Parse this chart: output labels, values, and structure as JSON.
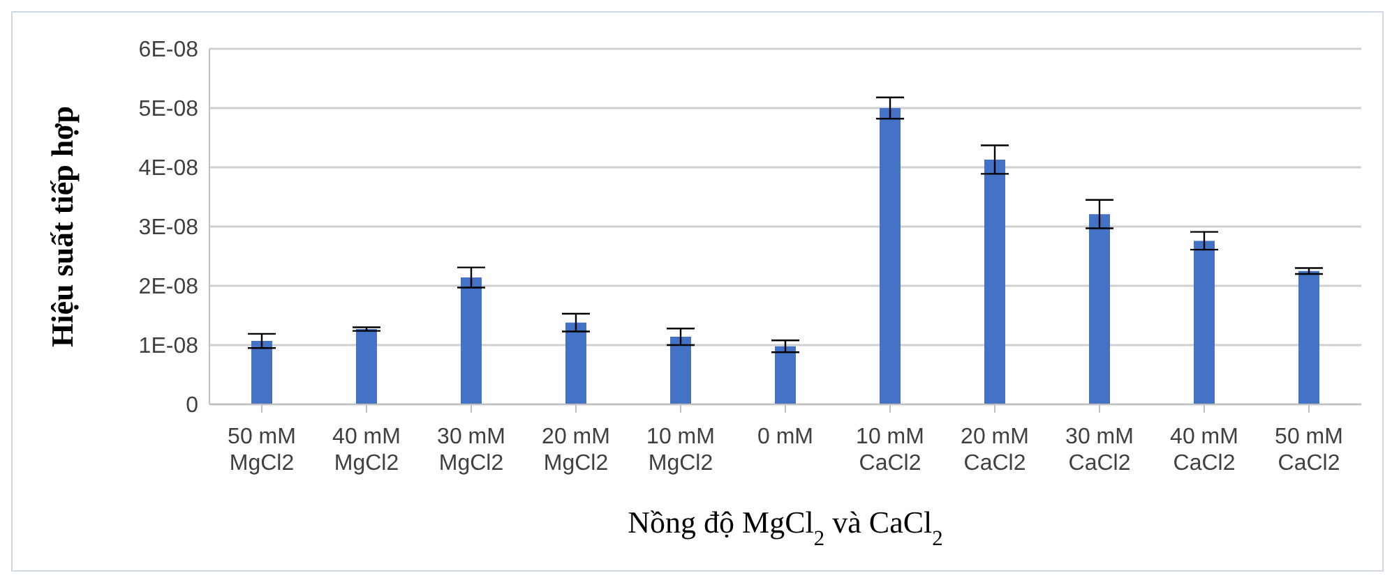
{
  "chart_data": {
    "type": "bar",
    "ylabel": "Hiệu suất tiếp hợp",
    "xlabel": "Nồng độ MgCl$_{2}$ và CaCl$_{2}$",
    "categories": [
      "50 mM\nMgCl2",
      "40 mM\nMgCl2",
      "30 mM\nMgCl2",
      "20 mM\nMgCl2",
      "10 mM\nMgCl2",
      "0 mM",
      "10 mM\nCaCl2",
      "20 mM\nCaCl2",
      "30 mM\nCaCl2",
      "40 mM\nCaCl2",
      "50 mM\nCaCl2"
    ],
    "values": [
      1.07e-08,
      1.27e-08,
      2.14e-08,
      1.38e-08,
      1.14e-08,
      9.8e-09,
      5e-08,
      4.13e-08,
      3.21e-08,
      2.76e-08,
      2.25e-08
    ],
    "errors": [
      1.2e-09,
      3e-10,
      1.7e-09,
      1.5e-09,
      1.4e-09,
      1e-09,
      1.8e-09,
      2.4e-09,
      2.4e-09,
      1.5e-09,
      5e-10
    ],
    "color": "#4472c4",
    "ylim": [
      0,
      6e-08
    ],
    "yticks": [
      0,
      {
        "value": 1e-08,
        "label": "1E-08"
      },
      {
        "value": 2e-08,
        "label": "2E-08"
      },
      {
        "value": 3e-08,
        "label": "3E-08"
      },
      {
        "value": 4e-08,
        "label": "4E-08"
      },
      {
        "value": 5e-08,
        "label": "5E-08"
      },
      {
        "value": 6e-08,
        "label": "6E-08"
      }
    ],
    "grid": "y",
    "legend": false
  }
}
